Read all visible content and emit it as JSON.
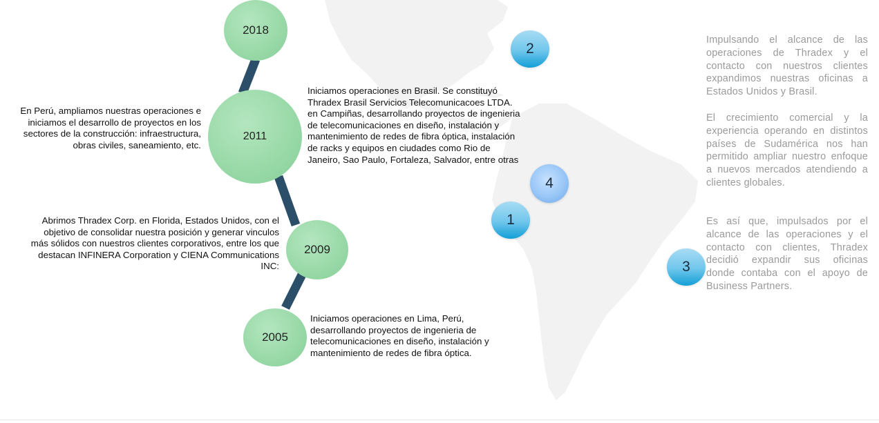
{
  "colors": {
    "timeline_line": "#2b4f68",
    "year_circle": "#9fdcad",
    "marker_teal": "#139fd6",
    "marker_blue": "#8dbcf2",
    "side_text": "#9a9a9a",
    "map_fill": "#f2f2f2"
  },
  "timeline": {
    "y2018": {
      "year": "2018"
    },
    "y2011": {
      "year": "2011",
      "left_text": "En Perú, ampliamos nuestras operaciones e iniciamos el desarrollo de proyectos en los sectores de la construcción: infraestructura, obras civiles, saneamiento, etc.",
      "right_text": "Iniciamos operaciones en Brasil. Se constituyó Thradex Brasil Servicios Telecomunicacoes LTDA.  en Campiñas, desarrollando proyectos de ingenieria de telecomunicaciones en diseño, instalación y mantenimiento de redes de fibra óptica, instalación de racks y equipos en ciudades como Rio de Janeiro, Sao Paulo, Fortaleza, Salvador, entre otras"
    },
    "y2009": {
      "year": "2009",
      "text": "Abrimos Thradex Corp.  en Florida, Estados Unidos, con el objetivo de consolidar nuestra posición y generar vinculos más sólidos con nuestros clientes corporativos, entre los que destacan INFINERA Corporation y CIENA Communications INC:"
    },
    "y2005": {
      "year": "2005",
      "text": "Iniciamos operaciones en Lima, Perú, desarrollando proyectos de ingenieria de telecomunicaciones en diseño, instalación y mantenimiento de redes de fibra óptica."
    }
  },
  "map_markers": [
    "1",
    "2",
    "3",
    "4"
  ],
  "side_paragraphs": [
    "Impulsando el alcance de las operaciones de Thradex y el contacto con nuestros clientes expandimos nuestras oficinas a Estados Unidos y Brasil.",
    "El crecimiento comercial y la experiencia operando en distintos países de Sudamérica nos han permitido ampliar nuestro enfoque a nuevos mercados atendiendo a clientes globales.",
    "Es así que, impulsados por el alcance de las operaciones y el contacto con clientes, Thradex decidió expandir sus oficinas donde contaba con el apoyo de Business Partners."
  ]
}
